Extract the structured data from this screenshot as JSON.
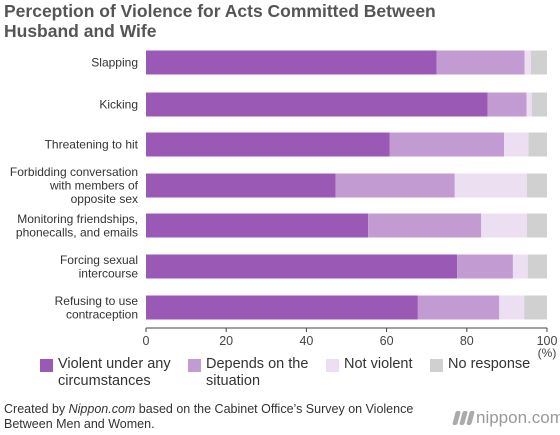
{
  "title": "Perception of Violence for Acts Committed Between Husband and Wife",
  "colors": {
    "violent": "#9b59b6",
    "depends": "#c39bd3",
    "not_violent": "#ecdff1",
    "no_response": "#d0d0d0"
  },
  "legend": [
    {
      "label": "Violent under any circumstances",
      "key": "violent"
    },
    {
      "label": "Depends on the situation",
      "key": "depends"
    },
    {
      "label": "Not violent",
      "key": "not_violent"
    },
    {
      "label": "No response",
      "key": "no_response"
    }
  ],
  "chart_data": {
    "type": "bar",
    "orientation": "horizontal",
    "stacked": true,
    "title": "Perception of Violence for Acts Committed Between Husband and Wife",
    "xlim": [
      0,
      100
    ],
    "xticks": [
      "0",
      "20",
      "40",
      "60",
      "80",
      "100"
    ],
    "x_unit": "(%)",
    "grid": false,
    "legend_position": "bottom",
    "categories": [
      "Slapping",
      "Kicking",
      "Threatening to hit",
      "Forbidding conversation with members of opposite sex",
      "Monitoring friendships, phonecalls, and emails",
      "Forcing sexual intercourse",
      "Refusing to use contraception"
    ],
    "series": [
      {
        "name": "Violent under any circumstances",
        "values": [
          72.5,
          85.2,
          60.8,
          47.3,
          55.4,
          77.6,
          67.8
        ]
      },
      {
        "name": "Depends on the situation",
        "values": [
          21.9,
          9.7,
          28.5,
          29.7,
          28.2,
          13.9,
          20.3
        ]
      },
      {
        "name": "Not violent",
        "values": [
          1.6,
          1.3,
          6.1,
          18.0,
          11.4,
          3.7,
          6.2
        ]
      },
      {
        "name": "No response",
        "values": [
          4.0,
          3.8,
          4.6,
          5.0,
          5.0,
          4.8,
          5.7
        ]
      }
    ]
  },
  "source": {
    "prefix": "Created by ",
    "site": "Nippon.com",
    "suffix": " based on the Cabinet Office’s Survey on Violence Between Men and Women."
  },
  "logo_text": "nippon.com"
}
